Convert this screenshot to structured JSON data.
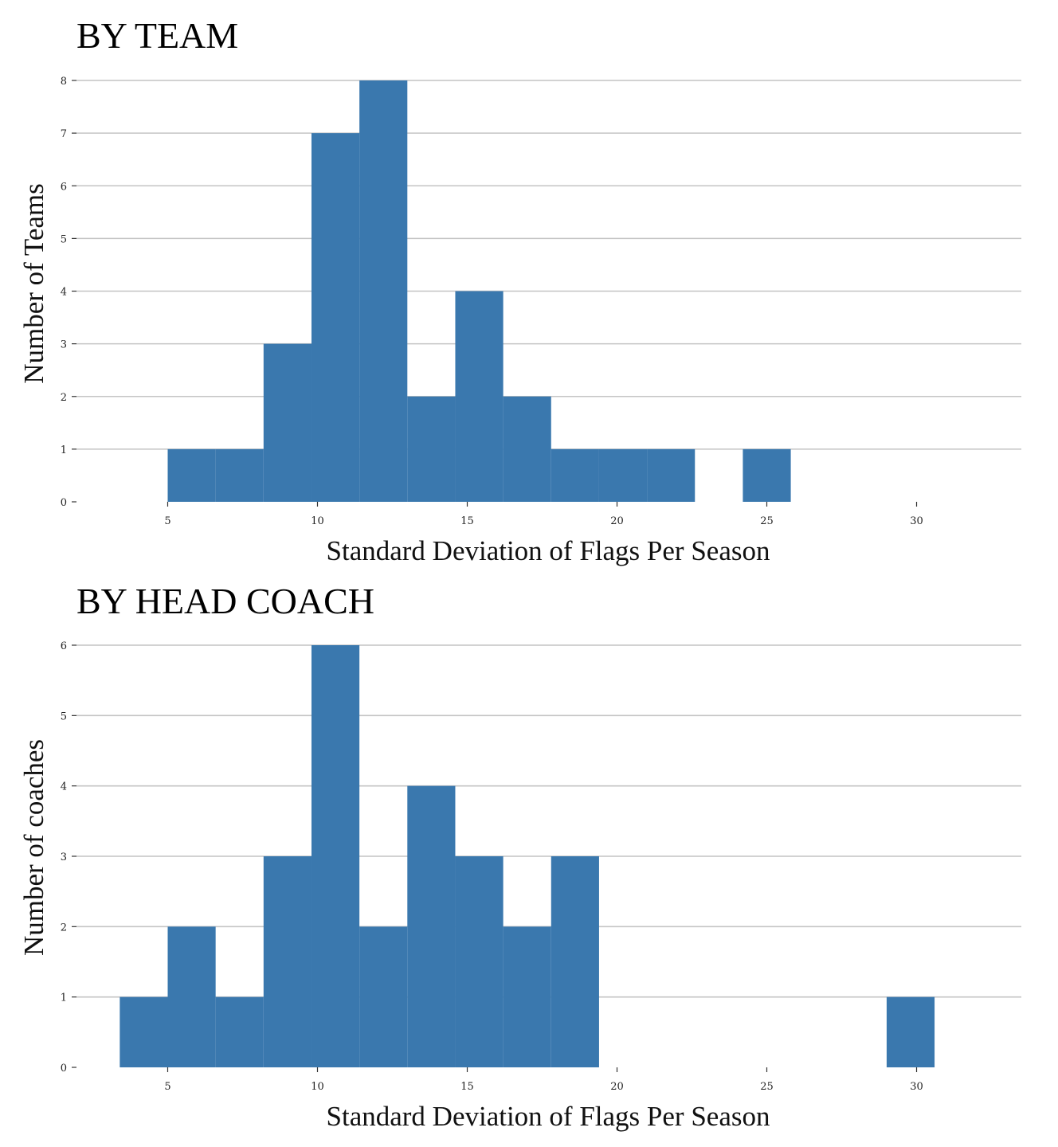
{
  "chart_data": [
    {
      "type": "bar",
      "title": "BY TEAM",
      "xlabel": "Standard Deviation of Flags Per Season",
      "ylabel": "Number of Teams",
      "xlim": [
        2,
        33.5
      ],
      "ylim": [
        0,
        8
      ],
      "x_ticks": [
        5,
        10,
        15,
        20,
        25,
        30
      ],
      "y_ticks": [
        0,
        1,
        2,
        3,
        4,
        5,
        6,
        7,
        8
      ],
      "grid": "horizontal",
      "color": "#3a78ae",
      "bin_width": 1.6,
      "bins": [
        {
          "x0": 5.0,
          "x1": 6.6,
          "count": 1
        },
        {
          "x0": 6.6,
          "x1": 8.2,
          "count": 1
        },
        {
          "x0": 8.2,
          "x1": 9.8,
          "count": 3
        },
        {
          "x0": 9.8,
          "x1": 11.4,
          "count": 7
        },
        {
          "x0": 11.4,
          "x1": 13.0,
          "count": 8
        },
        {
          "x0": 13.0,
          "x1": 14.6,
          "count": 2
        },
        {
          "x0": 14.6,
          "x1": 16.2,
          "count": 4
        },
        {
          "x0": 16.2,
          "x1": 17.8,
          "count": 2
        },
        {
          "x0": 17.8,
          "x1": 19.4,
          "count": 1
        },
        {
          "x0": 19.4,
          "x1": 21.0,
          "count": 1
        },
        {
          "x0": 21.0,
          "x1": 22.6,
          "count": 1
        },
        {
          "x0": 22.6,
          "x1": 24.2,
          "count": 0
        },
        {
          "x0": 24.2,
          "x1": 25.8,
          "count": 1
        }
      ]
    },
    {
      "type": "bar",
      "title": "BY HEAD COACH",
      "xlabel": "Standard Deviation of Flags Per Season",
      "ylabel": "Number of coaches",
      "xlim": [
        2,
        33.5
      ],
      "ylim": [
        0,
        6
      ],
      "x_ticks": [
        5,
        10,
        15,
        20,
        25,
        30
      ],
      "y_ticks": [
        0,
        1,
        2,
        3,
        4,
        5,
        6
      ],
      "grid": "horizontal",
      "color": "#3a78ae",
      "bin_width": 1.6,
      "bins": [
        {
          "x0": 3.4,
          "x1": 5.0,
          "count": 1
        },
        {
          "x0": 5.0,
          "x1": 6.6,
          "count": 2
        },
        {
          "x0": 6.6,
          "x1": 8.2,
          "count": 1
        },
        {
          "x0": 8.2,
          "x1": 9.8,
          "count": 3
        },
        {
          "x0": 9.8,
          "x1": 11.4,
          "count": 6
        },
        {
          "x0": 11.4,
          "x1": 13.0,
          "count": 2
        },
        {
          "x0": 13.0,
          "x1": 14.6,
          "count": 4
        },
        {
          "x0": 14.6,
          "x1": 16.2,
          "count": 3
        },
        {
          "x0": 16.2,
          "x1": 17.8,
          "count": 2
        },
        {
          "x0": 17.8,
          "x1": 19.4,
          "count": 3
        },
        {
          "x0": 29.0,
          "x1": 30.6,
          "count": 1
        }
      ]
    }
  ]
}
